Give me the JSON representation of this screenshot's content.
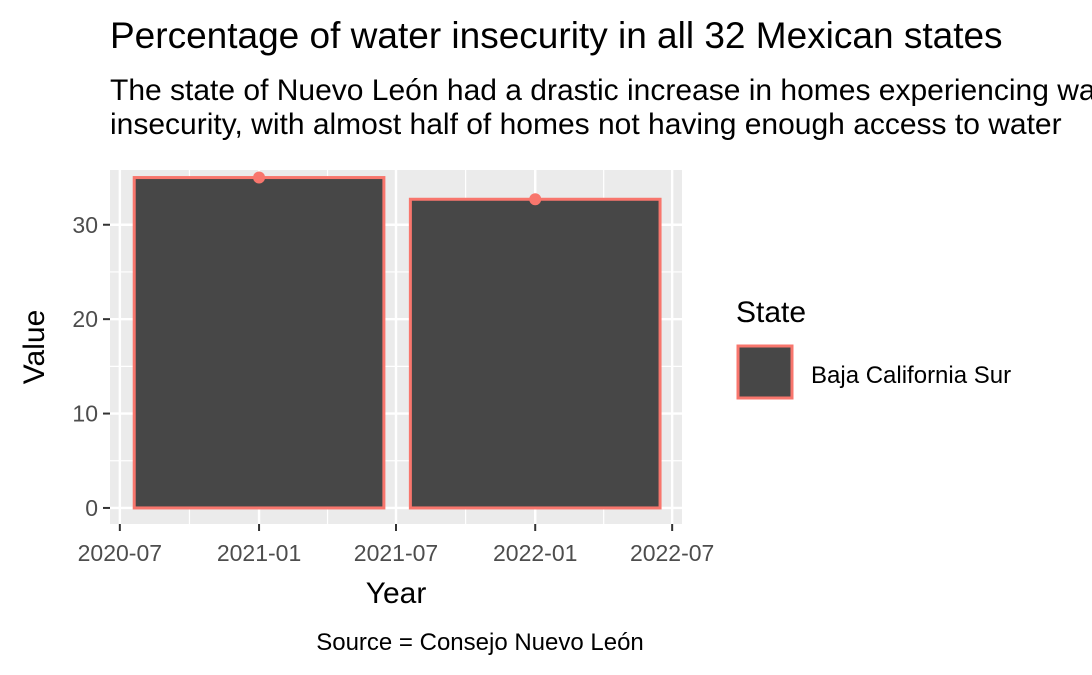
{
  "title": "Percentage of water insecurity in all 32 Mexican states",
  "subtitle_lines": [
    "The state of Nuevo León had a drastic increase in homes experiencing water",
    "insecurity, with almost half of homes not having enough access to water"
  ],
  "caption": "Source = Consejo Nuevo León",
  "colors": {
    "panel": "#EBEBEB",
    "grid": "#FFFFFF",
    "bar_fill": "#474747",
    "bar_outline": "#F8766D",
    "point": "#F8766D"
  },
  "chart_data": {
    "type": "bar",
    "x_is_date": true,
    "xlabel": "Year",
    "ylabel": "Value",
    "ylim": [
      -1.7,
      35.8
    ],
    "y_ticks": [
      0,
      10,
      20,
      30
    ],
    "x_range": [
      "2020-06-18",
      "2022-07-14"
    ],
    "x_ticks": [
      "2020-07",
      "2021-01",
      "2021-07",
      "2022-01",
      "2022-07"
    ],
    "bar_width_days": 330,
    "series": [
      {
        "name": "Baja California Sur",
        "points": [
          {
            "x": "2021-01",
            "y": 35
          },
          {
            "x": "2022-01",
            "y": 32.7
          }
        ]
      }
    ],
    "legend": {
      "title": "State",
      "position": "right",
      "entries": [
        "Baja California Sur"
      ]
    },
    "grid": true
  }
}
